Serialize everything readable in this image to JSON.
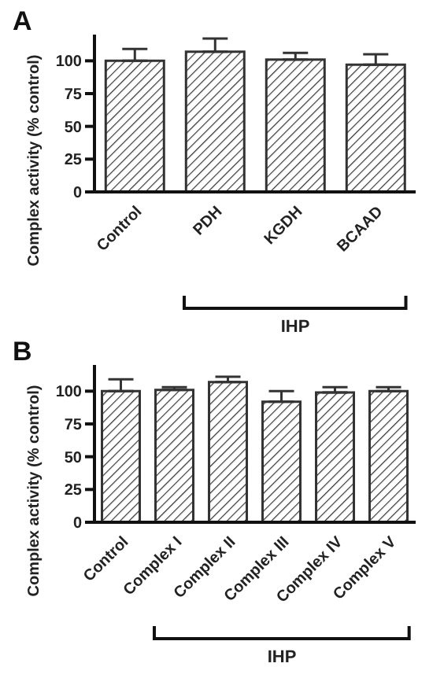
{
  "chart_data": [
    {
      "type": "bar",
      "title": "A",
      "ylabel": "Complex activity (% control)",
      "categories": [
        "Control",
        "PDH",
        "KGDH",
        "BCAAD"
      ],
      "series": [
        {
          "color": "#333333",
          "values": [
            100,
            107,
            101,
            97
          ],
          "errors": [
            [
              100,
              109
            ],
            [
              107,
              117
            ],
            [
              101,
              106
            ],
            [
              97,
              105
            ]
          ]
        }
      ],
      "ylim": [
        0,
        120
      ],
      "yticks": [
        0,
        25,
        50,
        75,
        100
      ],
      "grid": false,
      "legend": false,
      "annotations": [
        "IHP"
      ]
    },
    {
      "type": "bar",
      "title": "B",
      "ylabel": "Complex activity (% control)",
      "categories": [
        "Control",
        "Complex I",
        "Complex II",
        "Complex III",
        "Complex IV",
        "Complex V"
      ],
      "series": [
        {
          "color": "#333333",
          "values": [
            100,
            101,
            107,
            92,
            99,
            100
          ],
          "errors": [
            [
              100,
              109
            ],
            [
              101,
              103
            ],
            [
              107,
              111
            ],
            [
              92,
              100
            ],
            [
              99,
              103
            ],
            [
              100,
              103
            ]
          ]
        }
      ],
      "ylim": [
        0,
        120
      ],
      "yticks": [
        0,
        25,
        50,
        75,
        100
      ],
      "grid": false,
      "legend": false,
      "annotations": [
        "IHP"
      ]
    }
  ]
}
